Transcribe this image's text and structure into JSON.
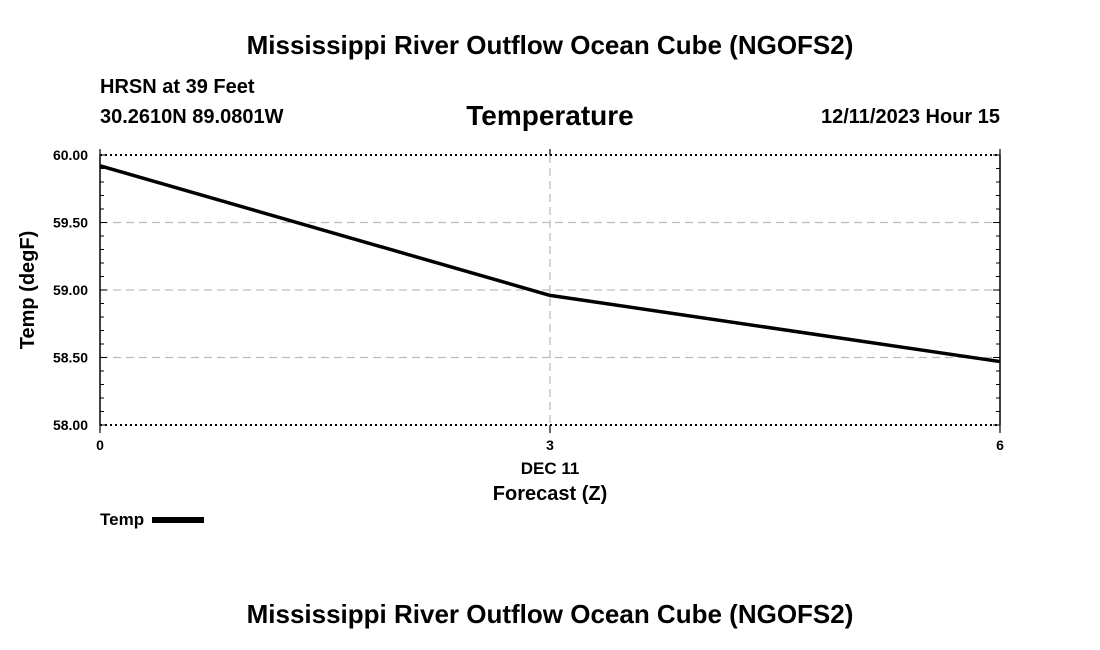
{
  "header": {
    "top_title": "Mississippi River Outflow Ocean Cube (NGOFS2)",
    "bottom_title": "Mississippi River Outflow Ocean Cube (NGOFS2)",
    "station": "HRSN at 39 Feet",
    "coords": "30.2610N  89.0801W",
    "date": "12/11/2023 Hour 15"
  },
  "chart_data": {
    "type": "line",
    "title": "Temperature",
    "xlabel": "Forecast (Z)",
    "xlabel_date": "DEC 11",
    "ylabel": "Temp (degF)",
    "xlim": [
      0,
      6
    ],
    "ylim": [
      58.0,
      60.0
    ],
    "x_ticks": [
      0,
      3,
      6
    ],
    "y_ticks": [
      58.0,
      58.5,
      59.0,
      59.5,
      60.0
    ],
    "y_tick_labels": [
      "58.00",
      "58.50",
      "59.00",
      "59.50",
      "60.00"
    ],
    "grid": true,
    "legend": "bottom-left",
    "series": [
      {
        "name": "Temp",
        "color": "#000000",
        "x": [
          0,
          3,
          6
        ],
        "values": [
          59.92,
          58.96,
          58.47
        ]
      }
    ]
  },
  "legend": {
    "label": "Temp"
  }
}
